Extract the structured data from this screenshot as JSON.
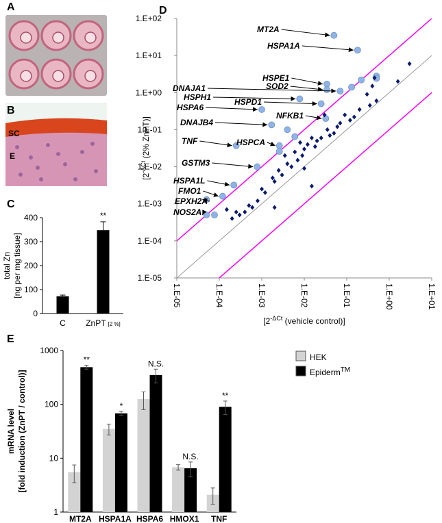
{
  "panel_labels": [
    "A",
    "B",
    "C",
    "D",
    "E"
  ],
  "image_labels": [
    "SC",
    "E"
  ],
  "chart_data": [
    {
      "type": "bar",
      "ylabel": [
        "total Zn",
        "[ng per mg tissue]"
      ],
      "categories": [
        "C",
        "ZnPT"
      ],
      "category_suffix": [
        null,
        "[2 %]"
      ],
      "values": [
        72,
        348
      ],
      "errors": [
        5,
        35
      ],
      "annotations": [
        null,
        "**"
      ],
      "color": "#000000",
      "ylim": [
        0,
        400
      ],
      "yticks": [
        0,
        100,
        200,
        300,
        400
      ]
    },
    {
      "type": "scatter",
      "xlabel": [
        "[2",
        "-ΔCt",
        " (vehicle control)]"
      ],
      "ylabel": [
        "[2",
        "-ΔCt",
        " (2%  ZnPT)]"
      ],
      "xlog": true,
      "ylog": true,
      "xlim": [
        1e-05,
        10
      ],
      "ylim": [
        1e-05,
        100
      ],
      "xticks": [
        {
          "value": 1e-05,
          "label": "1.E-05"
        },
        {
          "value": 0.0001,
          "label": "1.E-04"
        },
        {
          "value": 0.001,
          "label": "1.E-03"
        },
        {
          "value": 0.01,
          "label": "1.E-02"
        },
        {
          "value": 0.1,
          "label": "1.E-01"
        },
        {
          "value": 1,
          "label": "1.E+00"
        },
        {
          "value": 10,
          "label": "1.E+01"
        }
      ],
      "yticks": [
        {
          "value": 1e-05,
          "label": "1.E-05"
        },
        {
          "value": 0.0001,
          "label": "1.E-04"
        },
        {
          "value": 0.001,
          "label": "1.E-03"
        },
        {
          "value": 0.01,
          "label": "1.E-02"
        },
        {
          "value": 0.1,
          "label": "1.E-01"
        },
        {
          "value": 1,
          "label": "1.E+00"
        },
        {
          "value": 10,
          "label": "1.E+01"
        },
        {
          "value": 100,
          "label": "1.E+02"
        }
      ],
      "reference_lines": [
        {
          "factor": 10,
          "color": "#ff00ff"
        },
        {
          "factor": 1,
          "color": "#999999"
        },
        {
          "factor": 0.1,
          "color": "#ff00ff"
        }
      ],
      "series": [
        {
          "marker": "circle",
          "color": "#8fb4e3",
          "labels": [
            "MT2A",
            "HSPA1A",
            "HSPE1",
            "SOD2",
            "DNAJA1",
            "HSPH1",
            "HSPD1",
            "HSPA6",
            "NFKB1",
            "DNAJB4",
            "TNF",
            "HSPCA",
            "GSTM3",
            "HSPA1L",
            "FMO1",
            "EPXH2A",
            "NOS2A",
            null,
            null,
            null,
            null,
            null,
            null,
            null,
            null
          ],
          "x": [
            0.05,
            0.18,
            0.034,
            0.034,
            0.07,
            0.0078,
            0.025,
            0.001,
            0.032,
            0.0017,
            0.00025,
            0.0026,
            0.00078,
            0.00022,
            0.00012,
            5e-05,
            5e-05,
            7.7e-05,
            0.13,
            0.22,
            0.5,
            0.006,
            0.0026,
            0.004,
            0.5
          ],
          "values": [
            35,
            14,
            1.7,
            1.2,
            1.1,
            0.68,
            0.5,
            0.35,
            0.2,
            0.135,
            0.037,
            0.037,
            0.01,
            0.0032,
            0.0016,
            0.0013,
            0.0005,
            0.0005,
            1.4,
            2.2,
            2.8,
            0.065,
            0.026,
            0.1,
            2.4
          ]
        },
        {
          "marker": "diamond",
          "color": "#0a1a6e",
          "x": [
            3,
            1.6,
            0.45,
            0.4,
            0.5,
            0.35,
            0.2,
            0.15,
            0.12,
            0.09,
            0.07,
            0.06,
            0.05,
            0.04,
            0.035,
            0.025,
            0.02,
            0.018,
            0.015,
            0.012,
            0.01,
            0.009,
            0.008,
            0.007,
            0.006,
            0.005,
            0.004,
            0.0035,
            0.003,
            0.0025,
            0.002,
            0.0018,
            0.015,
            0.0012,
            0.001,
            0.0008,
            0.0006,
            0.0005,
            0.0004,
            0.0003,
            0.00025,
            0.0002,
            0.00015,
            0.002,
            0.01,
            0.03,
            0.3
          ],
          "values": [
            6,
            2,
            2.5,
            1.5,
            0.6,
            0.45,
            0.35,
            0.22,
            0.18,
            0.25,
            0.15,
            0.12,
            0.08,
            0.07,
            0.1,
            0.06,
            0.05,
            0.035,
            0.06,
            0.04,
            0.03,
            0.02,
            0.045,
            0.015,
            0.025,
            0.01,
            0.012,
            0.02,
            0.006,
            0.008,
            0.004,
            0.005,
            0.003,
            0.002,
            0.0025,
            0.0012,
            0.0008,
            0.0009,
            0.0006,
            0.0005,
            0.0006,
            0.0004,
            0.0007,
            0.0008,
            0.009,
            0.25,
            0.9
          ]
        }
      ]
    },
    {
      "type": "grouped_bar",
      "ylog": true,
      "ylabel": [
        "mRNA level",
        "[fold induction (ZnPT / control)]"
      ],
      "categories": [
        "MT2A",
        "HSPA1A",
        "HSPA6",
        "HMOX1",
        "TNF"
      ],
      "series": [
        {
          "name": "HEK",
          "color": "#d3d3d3",
          "values": [
            5.5,
            35,
            125,
            6.8,
            2.1
          ],
          "errors": [
            2,
            8,
            45,
            0.8,
            0.7
          ]
        },
        {
          "name": "Epiderm",
          "name_sup": "TM",
          "color": "#000000",
          "values": [
            490,
            68,
            350,
            6.5,
            90
          ],
          "errors": [
            40,
            6,
            100,
            2,
            25
          ]
        }
      ],
      "annotations": [
        "**",
        "*",
        "N.S.",
        "N.S.",
        "**"
      ],
      "ylim": [
        1,
        1000
      ],
      "yticks": [
        1,
        10,
        100,
        1000
      ]
    }
  ]
}
